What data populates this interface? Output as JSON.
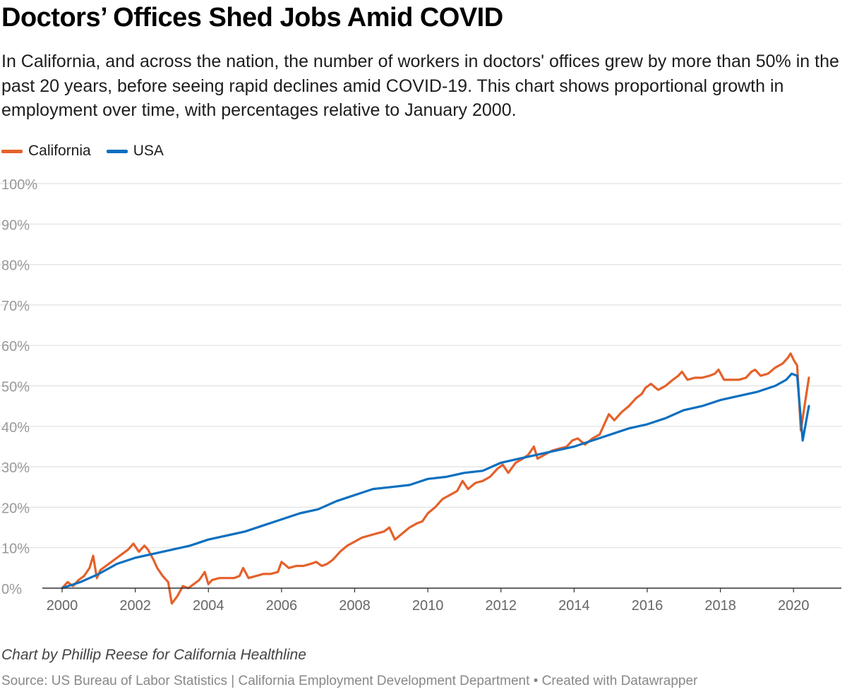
{
  "title": "Doctors’ Offices Shed Jobs Amid COVID",
  "subtitle": "In California, and across the nation, the number of workers in doctors' offices grew by more than 50% in the past 20 years, before seeing rapid declines amid COVID-19. This chart shows proportional growth in employment over time, with percentages relative to January 2000.",
  "colors": {
    "california": "#e4612a",
    "usa": "#0a6fbf",
    "grid": "#e1e1e1",
    "axis": "#333333",
    "tick_text": "#999999",
    "x_text": "#666666"
  },
  "chart_data": {
    "type": "line",
    "title": "Doctors’ Offices Shed Jobs Amid COVID",
    "xlabel": "",
    "ylabel": "",
    "xlim": [
      2000,
      2020.42
    ],
    "ylim": [
      0,
      100
    ],
    "y_ticks": [
      0,
      10,
      20,
      30,
      40,
      50,
      60,
      70,
      80,
      90,
      100
    ],
    "y_tick_labels": [
      "0%",
      "10%",
      "20%",
      "30%",
      "40%",
      "50%",
      "60%",
      "70%",
      "80%",
      "90%",
      "100%"
    ],
    "x_ticks": [
      2000,
      2002,
      2004,
      2006,
      2008,
      2010,
      2012,
      2014,
      2016,
      2018,
      2020
    ],
    "x_tick_labels": [
      "2000",
      "2002",
      "2004",
      "2006",
      "2008",
      "2010",
      "2012",
      "2014",
      "2016",
      "2018",
      "2020"
    ],
    "legend": "top-left",
    "series": [
      {
        "name": "California",
        "color": "#e4612a",
        "x": [
          2000,
          2000.15,
          2000.3,
          2000.45,
          2000.6,
          2000.75,
          2000.85,
          2000.95,
          2001.05,
          2001.2,
          2001.35,
          2001.5,
          2001.65,
          2001.8,
          2001.95,
          2002.1,
          2002.25,
          2002.35,
          2002.5,
          2002.6,
          2002.75,
          2002.9,
          2003.0,
          2003.15,
          2003.3,
          2003.45,
          2003.6,
          2003.75,
          2003.9,
          2004.0,
          2004.1,
          2004.3,
          2004.5,
          2004.7,
          2004.85,
          2004.95,
          2005.1,
          2005.3,
          2005.5,
          2005.7,
          2005.9,
          2006.0,
          2006.2,
          2006.4,
          2006.6,
          2006.8,
          2006.95,
          2007.1,
          2007.25,
          2007.4,
          2007.6,
          2007.8,
          2008.0,
          2008.2,
          2008.4,
          2008.6,
          2008.8,
          2008.95,
          2009.1,
          2009.3,
          2009.5,
          2009.7,
          2009.85,
          2010.0,
          2010.2,
          2010.4,
          2010.6,
          2010.8,
          2010.95,
          2011.1,
          2011.3,
          2011.5,
          2011.7,
          2011.9,
          2012.05,
          2012.2,
          2012.4,
          2012.6,
          2012.75,
          2012.9,
          2013.0,
          2013.2,
          2013.4,
          2013.6,
          2013.8,
          2013.95,
          2014.1,
          2014.3,
          2014.5,
          2014.7,
          2014.85,
          2014.95,
          2015.1,
          2015.3,
          2015.5,
          2015.7,
          2015.85,
          2015.95,
          2016.1,
          2016.3,
          2016.5,
          2016.7,
          2016.85,
          2016.95,
          2017.1,
          2017.3,
          2017.5,
          2017.7,
          2017.85,
          2017.95,
          2018.1,
          2018.3,
          2018.5,
          2018.7,
          2018.85,
          2018.95,
          2019.1,
          2019.3,
          2019.5,
          2019.7,
          2019.85,
          2019.92,
          2020.0,
          2020.1,
          2020.2,
          2020.3,
          2020.42
        ],
        "values": [
          0,
          1.5,
          0.5,
          2.0,
          3.0,
          5.0,
          8.0,
          2.5,
          4.5,
          5.5,
          6.5,
          7.5,
          8.5,
          9.5,
          11.0,
          9.0,
          10.5,
          9.5,
          7.0,
          5.0,
          3.0,
          1.5,
          -3.8,
          -2.0,
          0.5,
          0,
          1.0,
          2.0,
          4.0,
          1.0,
          2.0,
          2.5,
          2.5,
          2.5,
          3.0,
          5.0,
          2.5,
          3.0,
          3.5,
          3.5,
          4.0,
          6.5,
          5.0,
          5.5,
          5.5,
          6.0,
          6.5,
          5.5,
          6.0,
          7.0,
          9.0,
          10.5,
          11.5,
          12.5,
          13.0,
          13.5,
          14.0,
          15.0,
          12.0,
          13.5,
          15.0,
          16.0,
          16.5,
          18.5,
          20.0,
          22.0,
          23.0,
          24.0,
          26.5,
          24.5,
          26.0,
          26.5,
          27.5,
          29.5,
          30.5,
          28.5,
          31.0,
          32.0,
          33.0,
          35.0,
          32.0,
          33.0,
          34.0,
          34.5,
          35.0,
          36.5,
          37.0,
          35.5,
          37.0,
          38.0,
          41.0,
          43.0,
          41.5,
          43.5,
          45.0,
          47.0,
          48.0,
          49.5,
          50.5,
          49.0,
          50.0,
          51.5,
          52.5,
          53.5,
          51.5,
          52.0,
          52.0,
          52.5,
          53.0,
          54.0,
          51.5,
          51.5,
          51.5,
          52.0,
          53.5,
          54.0,
          52.5,
          53.0,
          54.5,
          55.5,
          57.0,
          58.0,
          56.5,
          55.0,
          39.0,
          45.0,
          52.0
        ]
      },
      {
        "name": "USA",
        "color": "#0a6fbf",
        "x": [
          2000,
          2000.5,
          2001.0,
          2001.5,
          2002.0,
          2002.5,
          2003.0,
          2003.5,
          2004.0,
          2004.5,
          2005.0,
          2005.5,
          2006.0,
          2006.5,
          2007.0,
          2007.5,
          2008.0,
          2008.5,
          2009.0,
          2009.5,
          2010.0,
          2010.5,
          2011.0,
          2011.5,
          2012.0,
          2012.5,
          2013.0,
          2013.5,
          2014.0,
          2014.5,
          2015.0,
          2015.5,
          2016.0,
          2016.5,
          2017.0,
          2017.5,
          2018.0,
          2018.5,
          2019.0,
          2019.5,
          2019.8,
          2019.95,
          2020.1,
          2020.25,
          2020.42
        ],
        "values": [
          0,
          1.5,
          3.5,
          6.0,
          7.5,
          8.5,
          9.5,
          10.5,
          12.0,
          13.0,
          14.0,
          15.5,
          17.0,
          18.5,
          19.5,
          21.5,
          23.0,
          24.5,
          25.0,
          25.5,
          27.0,
          27.5,
          28.5,
          29.0,
          31.0,
          32.0,
          33.0,
          34.0,
          35.0,
          36.5,
          38.0,
          39.5,
          40.5,
          42.0,
          44.0,
          45.0,
          46.5,
          47.5,
          48.5,
          50.0,
          51.5,
          53.0,
          52.5,
          36.5,
          45.0
        ]
      }
    ]
  },
  "legend_labels": {
    "california": "California",
    "usa": "USA"
  },
  "byline": "Chart by Phillip Reese for California Healthline",
  "source": {
    "source_label": "Source: US Bureau of Labor Statistics",
    "source_label_2": "California Employment Development Department",
    "credit": "Created with Datawrapper",
    "separator": "|",
    "bullet": "•"
  }
}
